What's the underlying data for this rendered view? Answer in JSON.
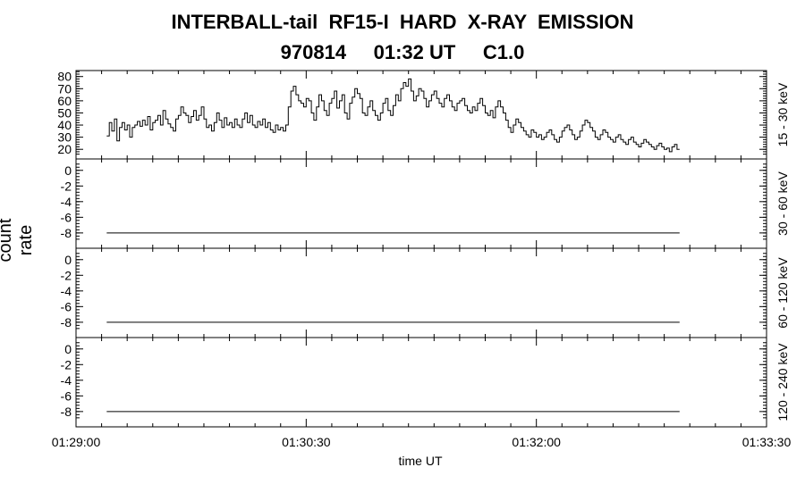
{
  "title_line1": "INTERBALL-tail  RF15-I  HARD  X-RAY  EMISSION",
  "title_line2": "970814     01:32 UT     C1.0",
  "chart_data": {
    "type": "line",
    "title": "INTERBALL-tail  RF15-I  HARD  X-RAY  EMISSION",
    "subtitle": "970814     01:32 UT     C1.0",
    "xlabel": "time UT",
    "ylabel": "count rate",
    "x_ticks": [
      "01:29:00",
      "01:30:30",
      "01:32:00",
      "01:33:30"
    ],
    "x_range_seconds": [
      0,
      270
    ],
    "panels": [
      {
        "channel": "15 - 30 keV",
        "ylim": [
          15,
          82
        ],
        "yticks": [
          20,
          30,
          40,
          50,
          60,
          70,
          80
        ],
        "ytick_labels": [
          "20",
          "30",
          "40",
          "50",
          "60",
          "70",
          "80"
        ],
        "series": {
          "x_start": 12,
          "x_end": 236,
          "step": 1,
          "values": [
            31,
            42,
            35,
            45,
            27,
            38,
            42,
            36,
            40,
            30,
            38,
            40,
            43,
            39,
            44,
            40,
            47,
            36,
            42,
            44,
            48,
            40,
            52,
            45,
            41,
            38,
            35,
            45,
            48,
            55,
            50,
            48,
            42,
            47,
            52,
            44,
            48,
            55,
            45,
            38,
            40,
            35,
            42,
            50,
            44,
            38,
            46,
            40,
            42,
            38,
            45,
            40,
            38,
            45,
            50,
            42,
            48,
            40,
            38,
            43,
            40,
            45,
            38,
            42,
            36,
            34,
            40,
            36,
            38,
            35,
            40,
            55,
            68,
            72,
            65,
            60,
            58,
            55,
            62,
            60,
            50,
            44,
            55,
            65,
            60,
            52,
            48,
            58,
            62,
            68,
            54,
            60,
            65,
            50,
            45,
            58,
            63,
            70,
            66,
            62,
            50,
            48,
            55,
            60,
            52,
            48,
            44,
            50,
            58,
            62,
            52,
            48,
            56,
            65,
            60,
            70,
            75,
            72,
            78,
            68,
            60,
            64,
            70,
            68,
            62,
            55,
            60,
            65,
            68,
            62,
            58,
            55,
            62,
            65,
            60,
            55,
            52,
            58,
            60,
            62,
            56,
            52,
            50,
            55,
            52,
            58,
            62,
            56,
            50,
            48,
            52,
            46,
            55,
            60,
            55,
            50,
            44,
            38,
            34,
            40,
            45,
            42,
            38,
            35,
            32,
            30,
            36,
            34,
            30,
            32,
            28,
            30,
            34,
            36,
            32,
            28,
            26,
            30,
            35,
            38,
            40,
            36,
            32,
            28,
            30,
            35,
            40,
            44,
            42,
            38,
            35,
            30,
            28,
            32,
            36,
            34,
            30,
            28,
            26,
            30,
            32,
            28,
            26,
            24,
            28,
            30,
            26,
            24,
            22,
            25,
            28,
            26,
            24,
            22,
            20,
            23,
            25,
            22,
            20,
            21,
            18,
            22,
            24,
            20
          ]
        }
      },
      {
        "channel": "30 - 60 keV",
        "ylim": [
          -9.5,
          1
        ],
        "yticks": [
          0,
          -2,
          -4,
          -6,
          -8
        ],
        "ytick_labels": [
          "0",
          "-2",
          "-4",
          "-6",
          "-8"
        ],
        "series": {
          "x_start": 12,
          "x_end": 236,
          "value": -8
        }
      },
      {
        "channel": "60 - 120 keV",
        "ylim": [
          -9.5,
          1
        ],
        "yticks": [
          0,
          -2,
          -4,
          -6,
          -8
        ],
        "ytick_labels": [
          "0",
          "-2",
          "-4",
          "-6",
          "-8"
        ],
        "series": {
          "x_start": 12,
          "x_end": 236,
          "value": -8
        }
      },
      {
        "channel": "120 - 240 keV",
        "ylim": [
          -9.5,
          1
        ],
        "yticks": [
          0,
          -2,
          -4,
          -6,
          -8
        ],
        "ytick_labels": [
          "0",
          "-2",
          "-4",
          "-6",
          "-8"
        ],
        "series": {
          "x_start": 12,
          "x_end": 236,
          "value": -8
        }
      }
    ]
  }
}
